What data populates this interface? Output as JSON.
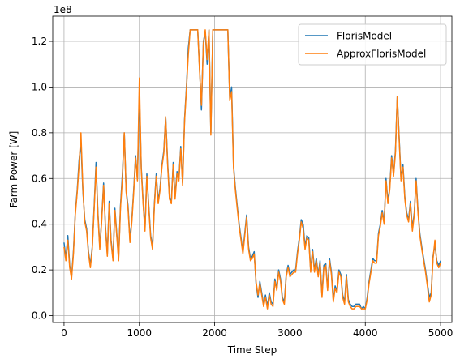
{
  "chart_data": {
    "type": "line",
    "xlabel": "Time Step",
    "ylabel": "Farm Power [W]",
    "offset_label": "1e8",
    "xlim": [
      -150,
      5150
    ],
    "ylim": [
      -0.03,
      1.31
    ],
    "x_ticks": [
      0,
      1000,
      2000,
      3000,
      4000,
      5000
    ],
    "x_tick_labels": [
      "0",
      "1000",
      "2000",
      "3000",
      "4000",
      "5000"
    ],
    "y_ticks": [
      0.0,
      0.2,
      0.4,
      0.6,
      0.8,
      1.0,
      1.2
    ],
    "y_tick_labels": [
      "0.0",
      "0.2",
      "0.4",
      "0.6",
      "0.8",
      "1.0",
      "1.2"
    ],
    "grid": true,
    "legend_position": "upper right",
    "series": [
      {
        "name": "FlorisModel",
        "color": "#1f77b4",
        "x": [
          0,
          25,
          50,
          75,
          100,
          125,
          150,
          175,
          200,
          225,
          250,
          275,
          300,
          325,
          350,
          375,
          400,
          425,
          450,
          475,
          500,
          525,
          550,
          575,
          600,
          625,
          650,
          675,
          700,
          725,
          750,
          775,
          800,
          825,
          850,
          875,
          900,
          925,
          950,
          975,
          1000,
          1025,
          1050,
          1075,
          1100,
          1125,
          1150,
          1175,
          1200,
          1225,
          1250,
          1275,
          1300,
          1325,
          1350,
          1375,
          1400,
          1425,
          1450,
          1475,
          1500,
          1525,
          1550,
          1575,
          1600,
          1625,
          1650,
          1675,
          1700,
          1725,
          1750,
          1775,
          1800,
          1825,
          1850,
          1875,
          1900,
          1925,
          1950,
          1975,
          2000,
          2025,
          2050,
          2075,
          2100,
          2125,
          2150,
          2175,
          2200,
          2225,
          2250,
          2275,
          2300,
          2325,
          2350,
          2375,
          2400,
          2425,
          2450,
          2475,
          2500,
          2525,
          2550,
          2575,
          2600,
          2625,
          2650,
          2675,
          2700,
          2725,
          2750,
          2775,
          2800,
          2825,
          2850,
          2875,
          2900,
          2925,
          2950,
          2975,
          3000,
          3025,
          3050,
          3075,
          3100,
          3125,
          3150,
          3175,
          3200,
          3225,
          3250,
          3275,
          3300,
          3325,
          3350,
          3375,
          3400,
          3425,
          3450,
          3475,
          3500,
          3525,
          3550,
          3575,
          3600,
          3625,
          3650,
          3675,
          3700,
          3725,
          3750,
          3775,
          3800,
          3825,
          3850,
          3875,
          3900,
          3925,
          3950,
          3975,
          4000,
          4025,
          4050,
          4075,
          4100,
          4125,
          4150,
          4175,
          4200,
          4225,
          4250,
          4275,
          4300,
          4325,
          4350,
          4375,
          4400,
          4425,
          4450,
          4475,
          4500,
          4525,
          4550,
          4575,
          4600,
          4625,
          4650,
          4675,
          4700,
          4725,
          4750,
          4775,
          4800,
          4825,
          4850,
          4875,
          4900,
          4925,
          4950,
          4975,
          5000
        ],
        "y": [
          0.32,
          0.25,
          0.35,
          0.22,
          0.17,
          0.28,
          0.45,
          0.55,
          0.68,
          0.76,
          0.55,
          0.42,
          0.38,
          0.28,
          0.22,
          0.3,
          0.48,
          0.67,
          0.45,
          0.3,
          0.42,
          0.58,
          0.39,
          0.27,
          0.5,
          0.33,
          0.25,
          0.47,
          0.36,
          0.25,
          0.48,
          0.62,
          0.8,
          0.55,
          0.48,
          0.33,
          0.42,
          0.55,
          0.7,
          0.6,
          0.97,
          0.65,
          0.5,
          0.38,
          0.62,
          0.48,
          0.35,
          0.3,
          0.49,
          0.62,
          0.5,
          0.56,
          0.66,
          0.72,
          0.87,
          0.67,
          0.52,
          0.5,
          0.67,
          0.52,
          0.63,
          0.6,
          0.74,
          0.58,
          0.86,
          1.0,
          1.17,
          1.25,
          1.25,
          1.25,
          1.25,
          1.25,
          1.08,
          0.9,
          1.2,
          1.24,
          1.1,
          1.25,
          0.8,
          1.25,
          1.25,
          1.25,
          1.25,
          1.25,
          1.25,
          1.25,
          1.25,
          1.25,
          0.95,
          1.0,
          0.66,
          0.56,
          0.48,
          0.4,
          0.34,
          0.28,
          0.36,
          0.44,
          0.3,
          0.25,
          0.26,
          0.28,
          0.14,
          0.08,
          0.15,
          0.1,
          0.05,
          0.09,
          0.04,
          0.1,
          0.06,
          0.05,
          0.16,
          0.12,
          0.2,
          0.16,
          0.08,
          0.06,
          0.18,
          0.22,
          0.18,
          0.19,
          0.2,
          0.2,
          0.28,
          0.34,
          0.42,
          0.4,
          0.3,
          0.35,
          0.34,
          0.2,
          0.29,
          0.2,
          0.25,
          0.18,
          0.24,
          0.09,
          0.22,
          0.23,
          0.12,
          0.25,
          0.19,
          0.07,
          0.13,
          0.11,
          0.2,
          0.18,
          0.09,
          0.06,
          0.18,
          0.07,
          0.05,
          0.04,
          0.04,
          0.05,
          0.05,
          0.05,
          0.03,
          0.04,
          0.03,
          0.08,
          0.15,
          0.2,
          0.25,
          0.24,
          0.24,
          0.36,
          0.4,
          0.46,
          0.41,
          0.6,
          0.5,
          0.56,
          0.7,
          0.62,
          0.72,
          0.96,
          0.78,
          0.6,
          0.66,
          0.52,
          0.45,
          0.42,
          0.5,
          0.38,
          0.45,
          0.6,
          0.46,
          0.36,
          0.3,
          0.25,
          0.2,
          0.14,
          0.08,
          0.1,
          0.26,
          0.31,
          0.24,
          0.22,
          0.24
        ]
      },
      {
        "name": "ApproxFlorisModel",
        "color": "#ff7f0e",
        "x": [
          0,
          25,
          50,
          75,
          100,
          125,
          150,
          175,
          200,
          225,
          250,
          275,
          300,
          325,
          350,
          375,
          400,
          425,
          450,
          475,
          500,
          525,
          550,
          575,
          600,
          625,
          650,
          675,
          700,
          725,
          750,
          775,
          800,
          825,
          850,
          875,
          900,
          925,
          950,
          975,
          1000,
          1025,
          1050,
          1075,
          1100,
          1125,
          1150,
          1175,
          1200,
          1225,
          1250,
          1275,
          1300,
          1325,
          1350,
          1375,
          1400,
          1425,
          1450,
          1475,
          1500,
          1525,
          1550,
          1575,
          1600,
          1625,
          1650,
          1675,
          1700,
          1725,
          1750,
          1775,
          1800,
          1825,
          1850,
          1875,
          1900,
          1925,
          1950,
          1975,
          2000,
          2025,
          2050,
          2075,
          2100,
          2125,
          2150,
          2175,
          2200,
          2225,
          2250,
          2275,
          2300,
          2325,
          2350,
          2375,
          2400,
          2425,
          2450,
          2475,
          2500,
          2525,
          2550,
          2575,
          2600,
          2625,
          2650,
          2675,
          2700,
          2725,
          2750,
          2775,
          2800,
          2825,
          2850,
          2875,
          2900,
          2925,
          2950,
          2975,
          3000,
          3025,
          3050,
          3075,
          3100,
          3125,
          3150,
          3175,
          3200,
          3225,
          3250,
          3275,
          3300,
          3325,
          3350,
          3375,
          3400,
          3425,
          3450,
          3475,
          3500,
          3525,
          3550,
          3575,
          3600,
          3625,
          3650,
          3675,
          3700,
          3725,
          3750,
          3775,
          3800,
          3825,
          3850,
          3875,
          3900,
          3925,
          3950,
          3975,
          4000,
          4025,
          4050,
          4075,
          4100,
          4125,
          4150,
          4175,
          4200,
          4225,
          4250,
          4275,
          4300,
          4325,
          4350,
          4375,
          4400,
          4425,
          4450,
          4475,
          4500,
          4525,
          4550,
          4575,
          4600,
          4625,
          4650,
          4675,
          4700,
          4725,
          4750,
          4775,
          4800,
          4825,
          4850,
          4875,
          4900,
          4925,
          4950,
          4975,
          5000
        ],
        "y": [
          0.3,
          0.24,
          0.33,
          0.21,
          0.16,
          0.27,
          0.44,
          0.54,
          0.66,
          0.8,
          0.56,
          0.41,
          0.37,
          0.27,
          0.21,
          0.29,
          0.47,
          0.65,
          0.44,
          0.29,
          0.41,
          0.57,
          0.38,
          0.26,
          0.49,
          0.32,
          0.24,
          0.46,
          0.35,
          0.24,
          0.47,
          0.6,
          0.8,
          0.54,
          0.47,
          0.32,
          0.41,
          0.54,
          0.69,
          0.59,
          1.04,
          0.64,
          0.49,
          0.37,
          0.61,
          0.47,
          0.34,
          0.29,
          0.48,
          0.61,
          0.49,
          0.55,
          0.65,
          0.71,
          0.87,
          0.66,
          0.51,
          0.49,
          0.66,
          0.51,
          0.62,
          0.59,
          0.73,
          0.57,
          0.85,
          0.99,
          1.14,
          1.25,
          1.25,
          1.25,
          1.25,
          1.25,
          1.07,
          0.92,
          1.19,
          1.25,
          1.12,
          1.25,
          0.79,
          1.25,
          1.25,
          1.25,
          1.25,
          1.25,
          1.25,
          1.25,
          1.25,
          1.25,
          0.94,
          0.98,
          0.65,
          0.55,
          0.47,
          0.39,
          0.33,
          0.27,
          0.35,
          0.43,
          0.29,
          0.24,
          0.25,
          0.27,
          0.15,
          0.09,
          0.14,
          0.09,
          0.04,
          0.08,
          0.03,
          0.09,
          0.05,
          0.04,
          0.15,
          0.11,
          0.19,
          0.15,
          0.07,
          0.05,
          0.17,
          0.21,
          0.17,
          0.18,
          0.19,
          0.19,
          0.27,
          0.33,
          0.41,
          0.38,
          0.29,
          0.34,
          0.33,
          0.19,
          0.28,
          0.19,
          0.24,
          0.17,
          0.23,
          0.08,
          0.21,
          0.22,
          0.11,
          0.24,
          0.18,
          0.06,
          0.12,
          0.1,
          0.19,
          0.17,
          0.08,
          0.05,
          0.17,
          0.06,
          0.04,
          0.03,
          0.03,
          0.04,
          0.04,
          0.04,
          0.03,
          0.03,
          0.03,
          0.07,
          0.14,
          0.19,
          0.24,
          0.23,
          0.23,
          0.35,
          0.39,
          0.45,
          0.4,
          0.59,
          0.49,
          0.55,
          0.69,
          0.61,
          0.71,
          0.96,
          0.77,
          0.59,
          0.65,
          0.51,
          0.44,
          0.41,
          0.49,
          0.37,
          0.44,
          0.59,
          0.45,
          0.35,
          0.29,
          0.24,
          0.19,
          0.13,
          0.06,
          0.09,
          0.25,
          0.33,
          0.23,
          0.21,
          0.23
        ]
      }
    ]
  }
}
